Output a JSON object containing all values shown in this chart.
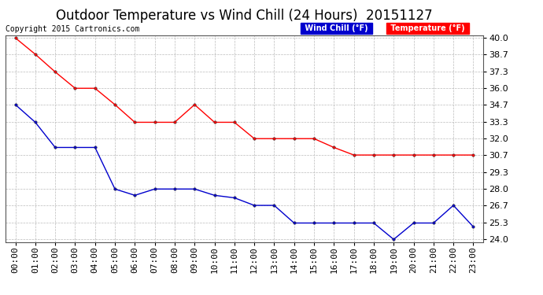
{
  "title": "Outdoor Temperature vs Wind Chill (24 Hours)  20151127",
  "copyright": "Copyright 2015 Cartronics.com",
  "legend_wind_chill": "Wind Chill (°F)",
  "legend_temperature": "Temperature (°F)",
  "hours": [
    "00:00",
    "01:00",
    "02:00",
    "03:00",
    "04:00",
    "05:00",
    "06:00",
    "07:00",
    "08:00",
    "09:00",
    "10:00",
    "11:00",
    "12:00",
    "13:00",
    "14:00",
    "15:00",
    "16:00",
    "17:00",
    "18:00",
    "19:00",
    "20:00",
    "21:00",
    "22:00",
    "23:00"
  ],
  "temperature": [
    40.0,
    38.7,
    37.3,
    36.0,
    36.0,
    34.7,
    33.3,
    33.3,
    33.3,
    34.7,
    33.3,
    33.3,
    32.0,
    32.0,
    32.0,
    32.0,
    31.3,
    30.7,
    30.7,
    30.7,
    30.7,
    30.7,
    30.7,
    30.7
  ],
  "wind_chill": [
    34.7,
    33.3,
    31.3,
    31.3,
    31.3,
    28.0,
    27.5,
    28.0,
    28.0,
    28.0,
    27.5,
    27.3,
    26.7,
    26.7,
    25.3,
    25.3,
    25.3,
    25.3,
    25.3,
    24.0,
    25.3,
    25.3,
    26.7,
    25.0
  ],
  "temp_color": "#ff0000",
  "wind_chill_color": "#0000cd",
  "ylim_min": 24.0,
  "ylim_max": 40.0,
  "yticks": [
    24.0,
    25.3,
    26.7,
    28.0,
    29.3,
    30.7,
    32.0,
    33.3,
    34.7,
    36.0,
    37.3,
    38.7,
    40.0
  ],
  "background_color": "#ffffff",
  "grid_color": "#bbbbbb",
  "title_fontsize": 12,
  "copyright_fontsize": 7,
  "axis_fontsize": 8,
  "legend_wc_bg": "#0000cd",
  "legend_temp_bg": "#ff0000"
}
